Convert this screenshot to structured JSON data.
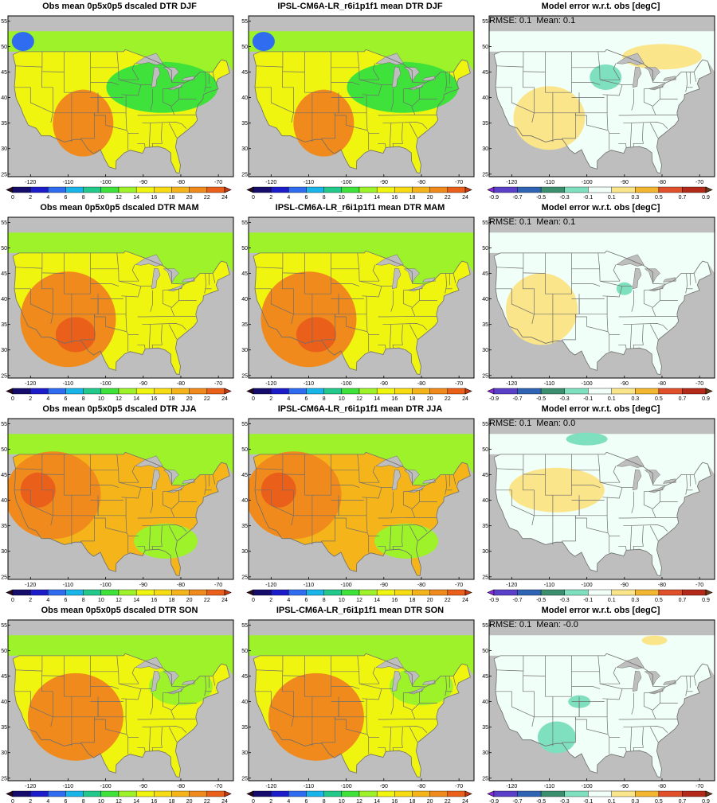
{
  "figure": {
    "rows": [
      {
        "season": "DJF",
        "obs_title": "Obs mean 0p5x0p5 dscaled DTR DJF",
        "model_title": "IPSL-CM6A-LR_r6i1p1f1 mean DTR DJF",
        "error_title": "Model error w.r.t. obs [degC]",
        "stats": "RMSE: 0.1  Mean: 0.1"
      },
      {
        "season": "MAM",
        "obs_title": "Obs mean 0p5x0p5 dscaled DTR MAM",
        "model_title": "IPSL-CM6A-LR_r6i1p1f1 mean DTR MAM",
        "error_title": "Model error w.r.t. obs [degC]",
        "stats": "RMSE: 0.1  Mean: 0.1"
      },
      {
        "season": "JJA",
        "obs_title": "Obs mean 0p5x0p5 dscaled DTR JJA",
        "model_title": "IPSL-CM6A-LR_r6i1p1f1 mean DTR JJA",
        "error_title": "Model error w.r.t. obs [degC]",
        "stats": "RMSE: 0.1  Mean: 0.0"
      },
      {
        "season": "SON",
        "obs_title": "Obs mean 0p5x0p5 dscaled DTR SON",
        "model_title": "IPSL-CM6A-LR_r6i1p1f1 mean DTR SON",
        "error_title": "Model error w.r.t. obs [degC]",
        "stats": "RMSE: 0.1  Mean: -0.0"
      }
    ]
  },
  "map_axes": {
    "x_ticks": [
      "-120",
      "-110",
      "-100",
      "-90",
      "-80",
      "-70"
    ],
    "x_tick_values": [
      -120,
      -110,
      -100,
      -90,
      -80,
      -70
    ],
    "y_ticks": [
      "25",
      "30",
      "35",
      "40",
      "45",
      "50",
      "55"
    ],
    "y_tick_values": [
      25,
      30,
      35,
      40,
      45,
      50,
      55
    ],
    "lon_range": [
      -126,
      -66
    ],
    "lat_range": [
      24.5,
      56
    ]
  },
  "colorbars": {
    "dtr": {
      "labels": [
        "0",
        "2",
        "4",
        "6",
        "8",
        "10",
        "12",
        "14",
        "16",
        "18",
        "20",
        "22",
        "24"
      ],
      "colors": [
        "#2a0a1f",
        "#150c6b",
        "#1c1cc8",
        "#2f6cf0",
        "#19b4e8",
        "#22c98a",
        "#3fe23a",
        "#9df22a",
        "#f0f50f",
        "#f7dc14",
        "#f5b41a",
        "#f08a1c",
        "#ea5f1a",
        "#c93a10"
      ]
    },
    "error": {
      "labels": [
        "-0.9",
        "-0.7",
        "-0.5",
        "-0.3",
        "-0.1",
        "0.1",
        "0.3",
        "0.5",
        "0.7",
        "0.9"
      ],
      "colors": [
        "#8a2be2",
        "#5a3fc8",
        "#2f64b4",
        "#3c8f6e",
        "#7fe0c0",
        "#f0fff8",
        "#fbe58a",
        "#f2b630",
        "#e0502a",
        "#b42a1a",
        "#6b3a1a"
      ]
    }
  },
  "colors": {
    "land_nodata": "#bebebe",
    "border": "#6e6e6e",
    "frame": "#000000"
  }
}
